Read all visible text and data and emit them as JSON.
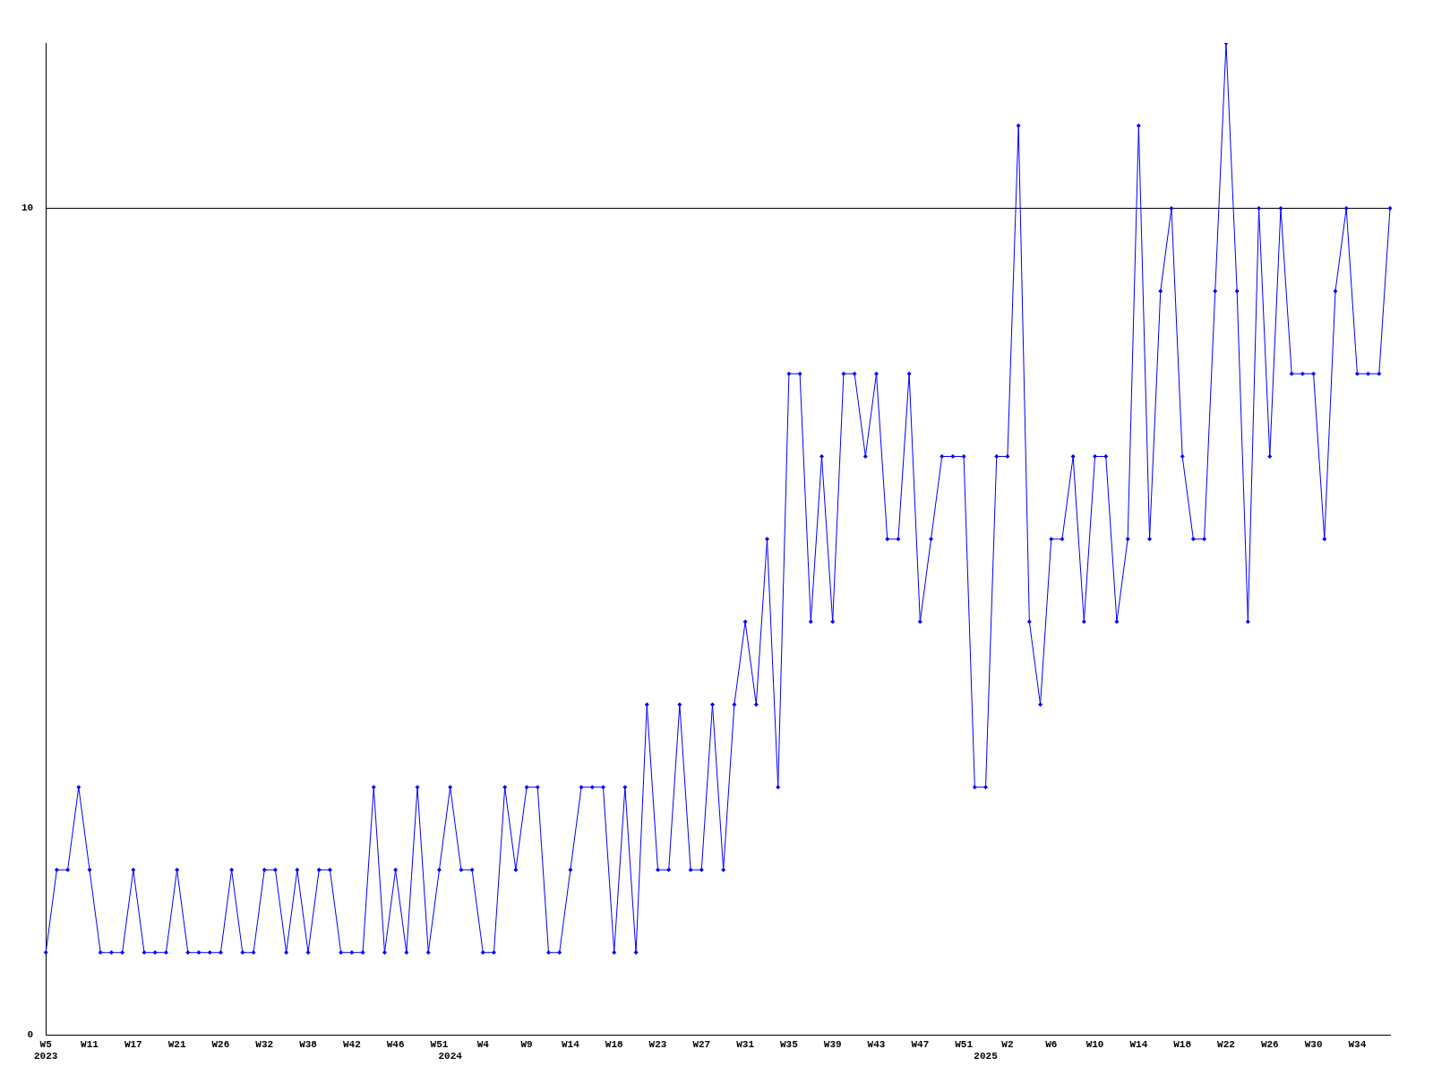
{
  "chart_data": {
    "type": "line",
    "categories": [
      "W5\n2023",
      null,
      null,
      null,
      "W11",
      null,
      null,
      null,
      "W17",
      null,
      null,
      null,
      "W21",
      null,
      null,
      null,
      "W26",
      null,
      null,
      null,
      "W32",
      null,
      null,
      null,
      "W38",
      null,
      null,
      null,
      "W42",
      null,
      null,
      null,
      "W46",
      null,
      null,
      null,
      "W51",
      "\n2024",
      null,
      null,
      "W4",
      null,
      null,
      null,
      "W9",
      null,
      null,
      null,
      "W14",
      null,
      null,
      null,
      "W18",
      null,
      null,
      null,
      "W23",
      null,
      null,
      null,
      "W27",
      null,
      null,
      null,
      "W31",
      null,
      null,
      null,
      "W35",
      null,
      null,
      null,
      "W39",
      null,
      null,
      null,
      "W43",
      null,
      null,
      null,
      "W47",
      null,
      null,
      null,
      "W51",
      null,
      "\n2025",
      null,
      "W2",
      null,
      null,
      null,
      "W6",
      null,
      null,
      null,
      "W10",
      null,
      null,
      null,
      "W14",
      null,
      null,
      null,
      "W18",
      null,
      null,
      null,
      "W22",
      null,
      null,
      null,
      "W26",
      null,
      null,
      null,
      "W30",
      null,
      null,
      null,
      "W34",
      null,
      null,
      null
    ],
    "series": [
      {
        "color": "#0000ff",
        "values": [
          1,
          2,
          2,
          3,
          2,
          1,
          1,
          1,
          2,
          1,
          1,
          1,
          2,
          1,
          1,
          1,
          1,
          2,
          1,
          1,
          2,
          2,
          1,
          2,
          1,
          2,
          2,
          1,
          1,
          1,
          3,
          1,
          2,
          1,
          3,
          1,
          2,
          3,
          2,
          2,
          1,
          1,
          3,
          2,
          3,
          3,
          1,
          1,
          2,
          3,
          3,
          3,
          1,
          3,
          1,
          4,
          2,
          2,
          4,
          2,
          2,
          4,
          2,
          4,
          5,
          4,
          6,
          3,
          8,
          8,
          5,
          7,
          5,
          8,
          8,
          7,
          8,
          6,
          6,
          8,
          5,
          6,
          7,
          7,
          7,
          3,
          3,
          7,
          7,
          11,
          5,
          4,
          6,
          6,
          7,
          5,
          7,
          7,
          5,
          6,
          11,
          6,
          9,
          10,
          7,
          6,
          6,
          9,
          12,
          9,
          5,
          10,
          7,
          10,
          8,
          8,
          8,
          6,
          9,
          10,
          8,
          8,
          8,
          10
        ]
      }
    ],
    "ylim": [
      0,
      12
    ],
    "yticks": [
      0,
      10
    ],
    "grid": "y",
    "legend": false,
    "marker": "diamond",
    "line_style": "solid"
  }
}
